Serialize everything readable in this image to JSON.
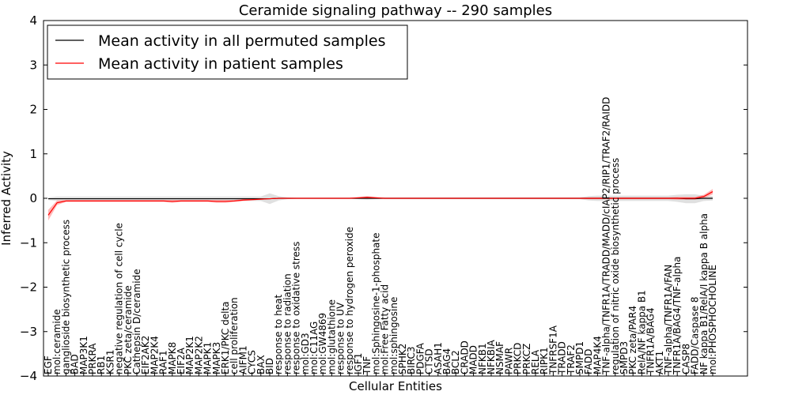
{
  "chart_data": {
    "type": "line",
    "title": "Ceramide signaling pathway -- 290 samples",
    "xlabel": "Cellular Entities",
    "ylabel": "Inferred Activity",
    "ylim": [
      -4,
      4
    ],
    "yticks": [
      -4,
      -3,
      -2,
      -1,
      0,
      1,
      2,
      3,
      4
    ],
    "ytick_labels": [
      "−4",
      "−3",
      "−2",
      "−1",
      "0",
      "1",
      "2",
      "3",
      "4"
    ],
    "legend_position": "top-left",
    "categories": [
      "EGF",
      "mol:ceramide",
      "ganglioside biosynthetic process",
      "BAD",
      "MAP3K1",
      "PRKRA",
      "RB1",
      "KSR1",
      "negative regulation of cell cycle",
      "PKC zeta/ceramide",
      "Cathepsin D/ceramide",
      "EIF2AK2",
      "MAP2K4",
      "RAF1",
      "MAPK8",
      "EIF2A",
      "MAP2K1",
      "MAP2K2",
      "MAPK1",
      "MAPK3",
      "ERK1/PKC delta",
      "cell proliferation",
      "AIFM1",
      "CYCS",
      "BAX",
      "BID",
      "response to heat",
      "response to radiation",
      "response to oxidative stress",
      "mol:GD3",
      "mol:C11AG",
      "mol:GW4869",
      "mol:glutathione",
      "response to UV",
      "response to hydrogen peroxide",
      "IGF1",
      "TNF",
      "mol:Sphingosine-1-phosphate",
      "mol:Free Fatty acid",
      "mol:sphingosine",
      "SPHK2",
      "BIRC3",
      "PDGFA",
      "CTSD",
      "ASAH1",
      "BAG4",
      "BCL2",
      "CRADD",
      "MADD",
      "NFKB1",
      "NFKBIA",
      "NSMAF",
      "PAWR",
      "PRKCD",
      "PRKCZ",
      "RELA",
      "RIPK1",
      "TNFRSF1A",
      "TRADD",
      "TRAF2",
      "SMPD1",
      "FADD",
      "MAP4K4",
      "TNF-alpha/TNFR1A/TRADD/MADD/cIAP2/RIP1/TRAF2/RAIDD",
      "regulation of nitric oxide biosynthetic process",
      "SMPD3",
      "PKC zeta/PAR4",
      "RelA/NF kappa B1",
      "TNFR1A/BAG4",
      "AKT1",
      "TNF-alpha/TNFR1A/FAN",
      "TNFR1A/BAG4/TNF-alpha",
      "CASP8",
      "FADD/Caspase 8",
      "NF kappa B1/RelA/I kappa B alpha",
      "mol:PHOSPHOCHOLINE"
    ],
    "series": [
      {
        "name": "Mean activity in all permuted samples",
        "color": "#000000",
        "band_color": "#bbbbbb",
        "values": [
          -0.01,
          -0.01,
          -0.01,
          -0.01,
          -0.01,
          -0.01,
          -0.01,
          -0.01,
          -0.01,
          -0.01,
          -0.01,
          -0.01,
          -0.01,
          -0.01,
          -0.01,
          -0.01,
          -0.01,
          -0.01,
          -0.01,
          -0.01,
          -0.01,
          -0.01,
          -0.01,
          -0.01,
          -0.01,
          -0.01,
          0.0,
          0.0,
          0.0,
          0.0,
          0.0,
          0.0,
          0.0,
          0.0,
          0.0,
          0.0,
          0.0,
          0.0,
          0.0,
          0.0,
          0.0,
          0.0,
          0.0,
          0.0,
          0.0,
          0.0,
          0.0,
          0.0,
          0.0,
          0.0,
          0.0,
          0.0,
          0.0,
          0.0,
          0.0,
          0.0,
          0.0,
          0.0,
          0.0,
          0.0,
          0.0,
          0.0,
          0.0,
          0.0,
          0.0,
          0.0,
          0.0,
          0.0,
          0.0,
          0.0,
          0.0,
          0.0,
          -0.01,
          -0.01,
          0.0,
          0.0
        ],
        "spread": [
          0.03,
          0.05,
          0.05,
          0.05,
          0.05,
          0.05,
          0.05,
          0.05,
          0.05,
          0.05,
          0.05,
          0.05,
          0.05,
          0.05,
          0.05,
          0.05,
          0.05,
          0.05,
          0.05,
          0.05,
          0.05,
          0.05,
          0.05,
          0.05,
          0.05,
          0.12,
          0.05,
          0.02,
          0.01,
          0.01,
          0.01,
          0.01,
          0.01,
          0.01,
          0.01,
          0.02,
          0.03,
          0.02,
          0.02,
          0.02,
          0.02,
          0.02,
          0.02,
          0.02,
          0.02,
          0.02,
          0.02,
          0.02,
          0.02,
          0.02,
          0.02,
          0.02,
          0.02,
          0.02,
          0.02,
          0.02,
          0.02,
          0.02,
          0.02,
          0.02,
          0.02,
          0.05,
          0.06,
          0.06,
          0.06,
          0.06,
          0.06,
          0.06,
          0.06,
          0.06,
          0.06,
          0.08,
          0.1,
          0.1,
          0.06,
          0.05
        ]
      },
      {
        "name": "Mean activity in patient samples",
        "color": "#ff0000",
        "band_color": "#ff8888",
        "values": [
          -0.38,
          -0.1,
          -0.06,
          -0.06,
          -0.06,
          -0.06,
          -0.06,
          -0.06,
          -0.06,
          -0.06,
          -0.06,
          -0.06,
          -0.06,
          -0.06,
          -0.07,
          -0.06,
          -0.06,
          -0.06,
          -0.06,
          -0.07,
          -0.07,
          -0.06,
          -0.04,
          -0.03,
          -0.02,
          -0.01,
          0.0,
          0.0,
          0.0,
          0.0,
          0.0,
          0.0,
          0.0,
          0.0,
          0.0,
          0.01,
          0.02,
          0.01,
          0.0,
          0.0,
          0.0,
          0.0,
          0.0,
          0.0,
          0.0,
          0.0,
          0.0,
          0.0,
          0.0,
          0.0,
          0.0,
          0.0,
          0.0,
          0.0,
          0.0,
          0.0,
          0.0,
          0.0,
          0.0,
          0.0,
          0.0,
          0.0,
          0.0,
          0.0,
          0.0,
          0.0,
          0.0,
          0.0,
          0.0,
          0.0,
          0.0,
          0.0,
          0.0,
          0.0,
          0.04,
          0.15
        ],
        "spread": [
          0.12,
          0.05,
          0.02,
          0.02,
          0.02,
          0.02,
          0.02,
          0.02,
          0.02,
          0.02,
          0.02,
          0.02,
          0.02,
          0.02,
          0.03,
          0.02,
          0.02,
          0.02,
          0.02,
          0.03,
          0.03,
          0.02,
          0.02,
          0.02,
          0.01,
          0.01,
          0.01,
          0.01,
          0.01,
          0.01,
          0.01,
          0.01,
          0.01,
          0.01,
          0.01,
          0.02,
          0.03,
          0.02,
          0.01,
          0.01,
          0.01,
          0.01,
          0.01,
          0.01,
          0.01,
          0.01,
          0.01,
          0.01,
          0.01,
          0.01,
          0.01,
          0.01,
          0.01,
          0.01,
          0.01,
          0.01,
          0.01,
          0.01,
          0.01,
          0.01,
          0.01,
          0.02,
          0.02,
          0.02,
          0.02,
          0.02,
          0.02,
          0.02,
          0.02,
          0.02,
          0.02,
          0.03,
          0.03,
          0.03,
          0.04,
          0.06
        ]
      }
    ]
  }
}
